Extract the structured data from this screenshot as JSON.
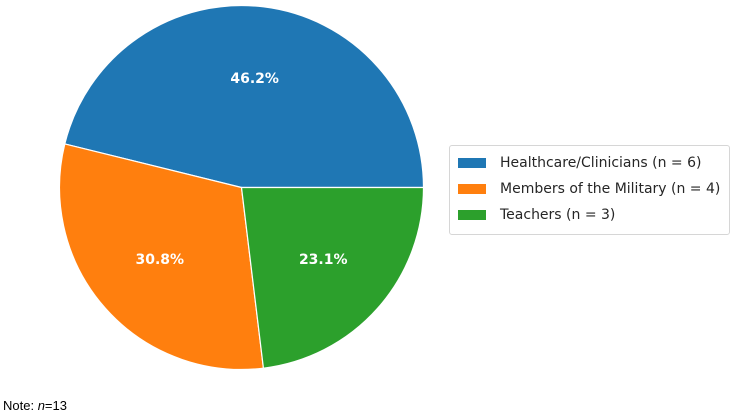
{
  "chart_data": {
    "type": "pie",
    "categories": [
      "Healthcare/Clinicians (n = 6)",
      "Members of the Military (n = 4)",
      "Teachers (n = 3)"
    ],
    "values": [
      6,
      4,
      3
    ],
    "percent_labels": [
      "46.2%",
      "30.8%",
      "23.1%"
    ],
    "colors": [
      "#1f77b4",
      "#ff7f0e",
      "#2ca02c"
    ],
    "start_angle_deg": 0,
    "direction": "counterclockwise",
    "legend_position": "right"
  },
  "note": {
    "prefix": "Note: ",
    "variable": "n",
    "suffix": "=13"
  }
}
